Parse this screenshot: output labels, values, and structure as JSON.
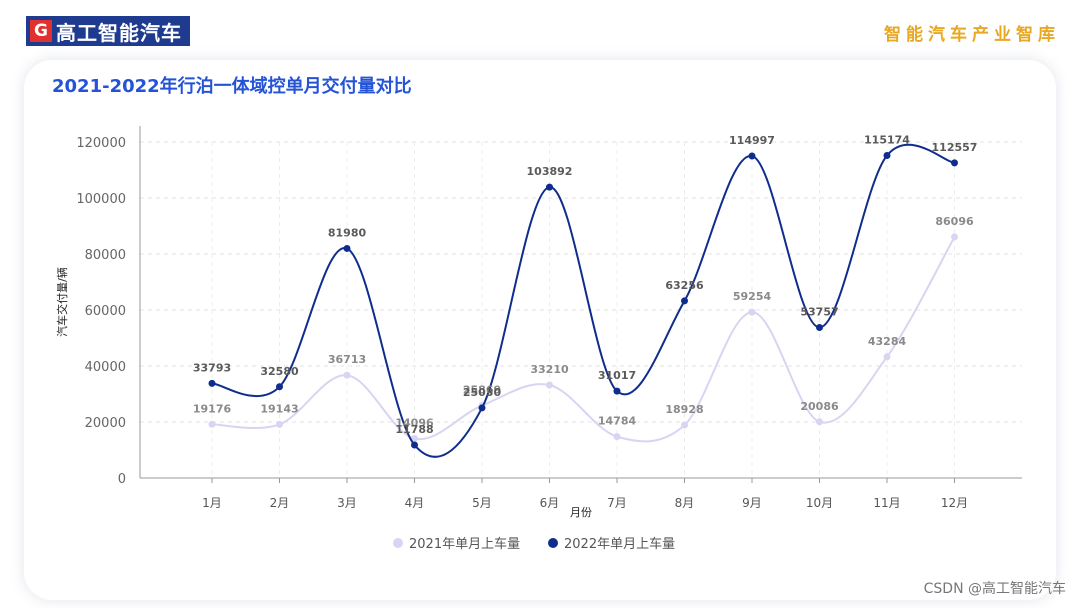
{
  "brand": {
    "logo_mark": "G",
    "name": "高工智能汽车"
  },
  "tagline": "智能汽车产业智库",
  "footer": "CSDN @高工智能汽车",
  "chart_data": {
    "type": "line",
    "title": "2021-2022年行泊一体域控单月交付量对比",
    "xlabel": "月份",
    "ylabel": "汽车交付量/辆",
    "categories": [
      "1月",
      "2月",
      "3月",
      "4月",
      "5月",
      "6月",
      "7月",
      "8月",
      "9月",
      "10月",
      "11月",
      "12月"
    ],
    "ylim": [
      0,
      120000
    ],
    "yticks": [
      0,
      20000,
      40000,
      60000,
      80000,
      100000,
      120000
    ],
    "grid": true,
    "legend_position": "bottom",
    "series": [
      {
        "name": "2021年单月上车量",
        "color": "#d7d5f2",
        "values": [
          19176,
          19143,
          36713,
          14096,
          25869,
          33210,
          14784,
          18928,
          59254,
          20086,
          43284,
          86096
        ]
      },
      {
        "name": "2022年单月上车量",
        "color": "#0f2d8c",
        "values": [
          33793,
          32580,
          81980,
          11788,
          25030,
          103892,
          31017,
          63256,
          114997,
          53757,
          115174,
          112557
        ]
      }
    ]
  }
}
